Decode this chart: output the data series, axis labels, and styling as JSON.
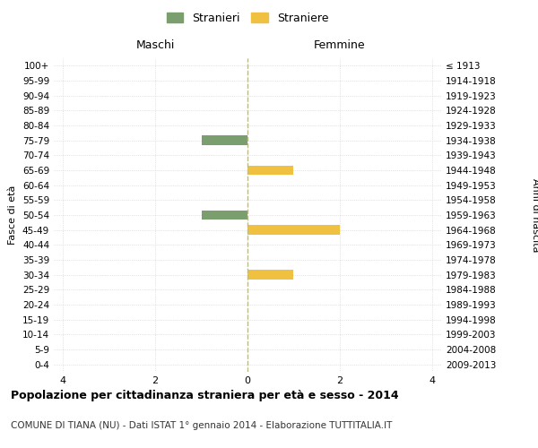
{
  "age_groups": [
    "100+",
    "95-99",
    "90-94",
    "85-89",
    "80-84",
    "75-79",
    "70-74",
    "65-69",
    "60-64",
    "55-59",
    "50-54",
    "45-49",
    "40-44",
    "35-39",
    "30-34",
    "25-29",
    "20-24",
    "15-19",
    "10-14",
    "5-9",
    "0-4"
  ],
  "birth_years": [
    "≤ 1913",
    "1914-1918",
    "1919-1923",
    "1924-1928",
    "1929-1933",
    "1934-1938",
    "1939-1943",
    "1944-1948",
    "1949-1953",
    "1954-1958",
    "1959-1963",
    "1964-1968",
    "1969-1973",
    "1974-1978",
    "1979-1983",
    "1984-1988",
    "1989-1993",
    "1994-1998",
    "1999-2003",
    "2004-2008",
    "2009-2013"
  ],
  "maschi": [
    0,
    0,
    0,
    0,
    0,
    -1,
    0,
    0,
    0,
    0,
    -1,
    0,
    0,
    0,
    0,
    0,
    0,
    0,
    0,
    0,
    0
  ],
  "femmine": [
    0,
    0,
    0,
    0,
    0,
    0,
    0,
    1,
    0,
    0,
    0,
    2,
    0,
    0,
    1,
    0,
    0,
    0,
    0,
    0,
    0
  ],
  "color_maschi": "#7a9e6e",
  "color_femmine": "#f0c040",
  "title": "Popolazione per cittadinanza straniera per età e sesso - 2014",
  "subtitle": "COMUNE DI TIANA (NU) - Dati ISTAT 1° gennaio 2014 - Elaborazione TUTTITALIA.IT",
  "xlabel_maschi": "Maschi",
  "xlabel_femmine": "Femmine",
  "ylabel_left": "Fasce di età",
  "ylabel_right": "Anni di nascita",
  "legend_maschi": "Stranieri",
  "legend_femmine": "Straniere",
  "xlim": [
    -4.2,
    4.2
  ],
  "xticks": [
    -4,
    -2,
    0,
    2,
    4
  ],
  "xticklabels": [
    "4",
    "2",
    "0",
    "2",
    "4"
  ],
  "background_color": "#ffffff",
  "grid_color": "#cccccc",
  "center_line_color": "#aaaaaa"
}
